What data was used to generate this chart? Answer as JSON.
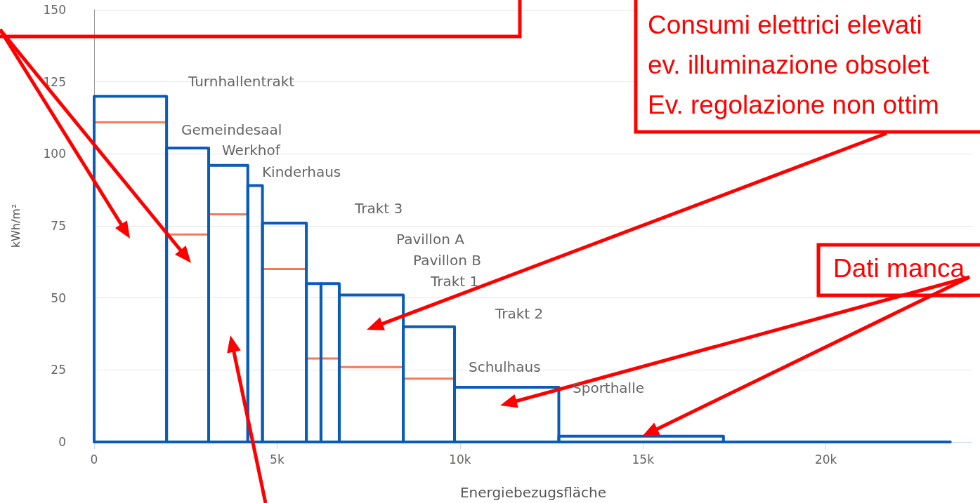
{
  "chart_data": {
    "type": "histogram",
    "xlabel": "Energiebezugsfläche",
    "ylabel": "kWh/m²",
    "bins": [
      0,
      1980,
      3130,
      4200,
      4600,
      5800,
      6200,
      6700,
      8450,
      9850,
      12700,
      17200,
      23400
    ],
    "series": [
      {
        "color": "#0b5cb8",
        "values": [
          120,
          102,
          96,
          89,
          76,
          55,
          55,
          51,
          40,
          19,
          2,
          0
        ]
      },
      {
        "type": "line",
        "color": "#f47a55",
        "x": [
          0,
          1980
        ],
        "values": [
          111,
          111
        ]
      },
      {
        "type": "line",
        "color": "#f47a55",
        "x": [
          1980,
          3130
        ],
        "values": [
          72,
          72
        ]
      },
      {
        "type": "line",
        "color": "#f47a55",
        "x": [
          3130,
          4200
        ],
        "values": [
          79,
          79
        ]
      },
      {
        "type": "line",
        "color": "#f47a55",
        "x": [
          4600,
          5800
        ],
        "values": [
          60,
          60
        ]
      },
      {
        "type": "line",
        "color": "#f47a55",
        "x": [
          5800,
          6700
        ],
        "values": [
          29,
          29
        ]
      },
      {
        "type": "line",
        "color": "#f47a55",
        "x": [
          6700,
          8450
        ],
        "values": [
          26,
          26
        ]
      },
      {
        "type": "line",
        "color": "#f47a55",
        "x": [
          8450,
          9850
        ],
        "values": [
          22,
          22
        ]
      }
    ],
    "xlim": [
      0,
      24000
    ],
    "xticks": [
      0,
      {
        "value": 5000,
        "label": "5k"
      },
      {
        "value": 10000,
        "label": "10k"
      },
      {
        "value": 15000,
        "label": "15k"
      },
      {
        "value": 20000,
        "label": "20k"
      }
    ],
    "ylim": [
      0,
      150
    ],
    "yticks": [
      0,
      25,
      50,
      75,
      100,
      125,
      150
    ],
    "grid": "y",
    "annotations": [
      "Turnhallentrakt",
      "Gemeindesaal",
      "Werkhof",
      "Kinderhaus",
      "Trakt 3",
      "Pavillon A",
      "Pavillon B",
      "Trakt 1",
      "Trakt 2",
      "Schulhaus",
      "Sporthalle",
      "Consumi elettrici elevati",
      "ev. illuminazione obsolet",
      "Ev. regolazione non ottim",
      "Dati manca"
    ]
  }
}
